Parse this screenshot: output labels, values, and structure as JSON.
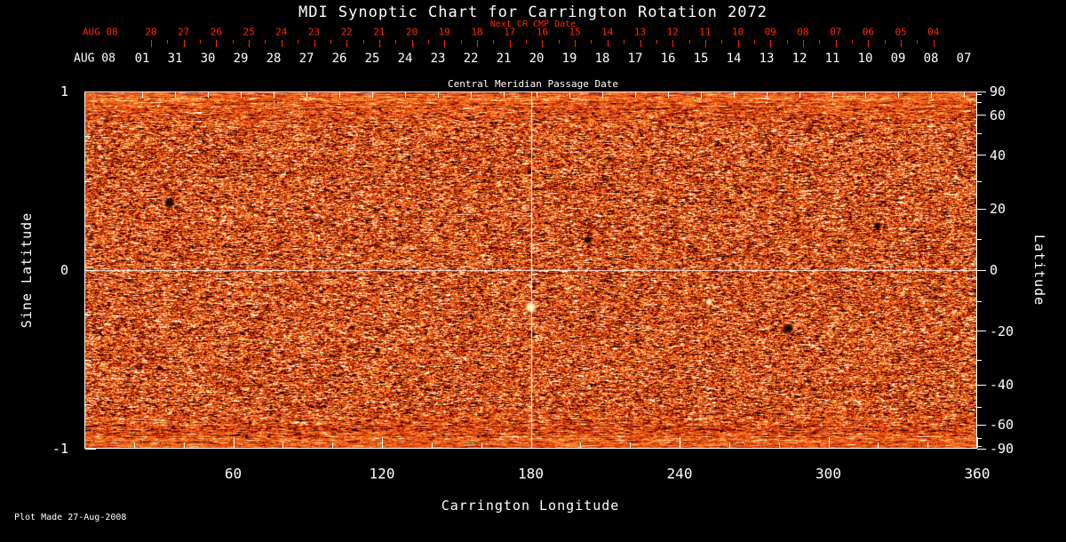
{
  "chart_data": {
    "type": "heatmap",
    "title": "MDI Synoptic Chart for Carrington Rotation 2072",
    "xlabel": "Carrington Longitude",
    "ylabel_left": "Sine Latitude",
    "ylabel_right": "Latitude",
    "x_range": [
      0,
      360
    ],
    "x_major_ticks": [
      "60",
      "120",
      "180",
      "240",
      "300",
      "360"
    ],
    "x_minor_tick_step_deg": 20,
    "sine_latitude_range": [
      -1,
      1
    ],
    "left_axis_ticks": [
      "1",
      "0",
      "-1"
    ],
    "right_axis_latitude_ticks": [
      "90",
      "60",
      "40",
      "20",
      "0",
      "-20",
      "-40",
      "-60",
      "-90"
    ],
    "top_axis": {
      "label": "Next CR CMP Date",
      "month": "AUG 08",
      "days": [
        "28",
        "27",
        "26",
        "25",
        "24",
        "23",
        "22",
        "21",
        "20",
        "19",
        "18",
        "17",
        "16",
        "15",
        "14",
        "13",
        "12",
        "11",
        "10",
        "09",
        "08",
        "07",
        "06",
        "05",
        "04"
      ],
      "color": "#ff2a00"
    },
    "cmp_axis": {
      "label": "Central Meridian Passage Date",
      "month": "AUG 08",
      "days": [
        "01",
        "31",
        "30",
        "29",
        "28",
        "27",
        "26",
        "25",
        "24",
        "23",
        "22",
        "21",
        "20",
        "19",
        "18",
        "17",
        "16",
        "15",
        "14",
        "13",
        "12",
        "11",
        "10",
        "09",
        "08",
        "07"
      ]
    },
    "crosshair": {
      "longitude": 180,
      "sine_latitude": 0
    },
    "colormap": {
      "base": "#e95416",
      "dark": "#0a0000",
      "bright": "#ffffff",
      "description": "orange-red solar magnetogram noise; bright flecks = positive magnetic flux, dark flecks = negative magnetic flux"
    },
    "features": [
      {
        "longitude": 180,
        "sine_latitude": -0.21,
        "polarity": "bright",
        "size": 5
      },
      {
        "longitude": 34,
        "sine_latitude": 0.38,
        "polarity": "dark",
        "size": 4
      },
      {
        "longitude": 284,
        "sine_latitude": -0.33,
        "polarity": "dark",
        "size": 4
      },
      {
        "longitude": 252,
        "sine_latitude": -0.18,
        "polarity": "bright",
        "size": 3
      },
      {
        "longitude": 203,
        "sine_latitude": 0.17,
        "polarity": "dark",
        "size": 3
      },
      {
        "longitude": 320,
        "sine_latitude": 0.25,
        "polarity": "dark",
        "size": 3
      },
      {
        "longitude": 118,
        "sine_latitude": -0.45,
        "polarity": "dark",
        "size": 2
      },
      {
        "longitude": 30,
        "sine_latitude": -0.55,
        "polarity": "dark",
        "size": 2
      }
    ],
    "footer": "Plot Made 27-Aug-2008"
  }
}
